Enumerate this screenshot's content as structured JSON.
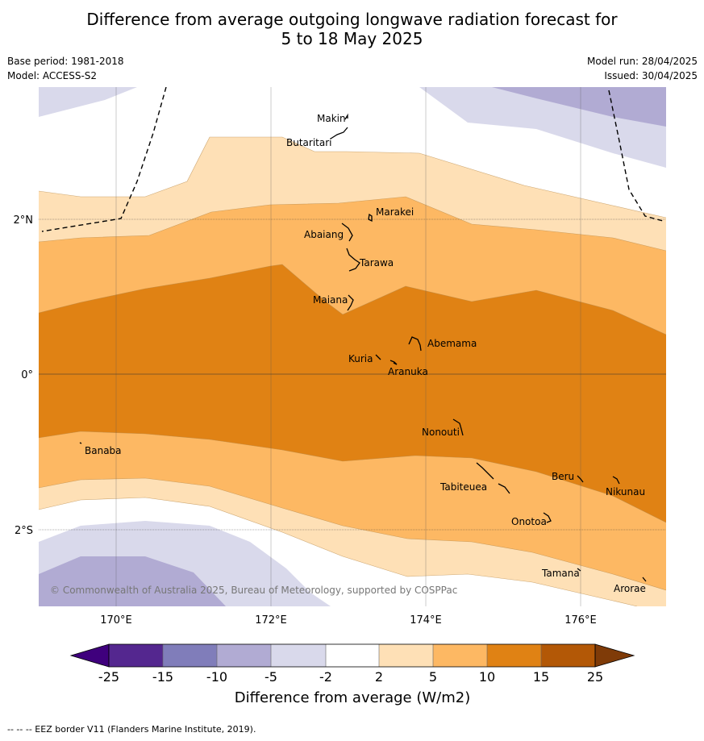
{
  "title": {
    "line1": "Difference from average outgoing longwave radiation forecast for",
    "line2": "5 to 18 May 2025"
  },
  "meta": {
    "base_period": "Base period: 1981-2018",
    "model": "Model: ACCESS-S2",
    "model_run": "Model run: 28/04/2025",
    "issued": "Issued: 30/04/2025"
  },
  "copyright": "© Commonwealth of Australia 2025, Bureau of Meteorology, supported by COSPPac",
  "axes": {
    "lon_ticks": [
      "170°E",
      "172°E",
      "174°E",
      "176°E"
    ],
    "lat_ticks": [
      "2°N",
      "0°",
      "2°S"
    ]
  },
  "places": [
    {
      "name": "Makin"
    },
    {
      "name": "Butaritari"
    },
    {
      "name": "Marakei"
    },
    {
      "name": "Abaiang"
    },
    {
      "name": "Tarawa"
    },
    {
      "name": "Maiana"
    },
    {
      "name": "Abemama"
    },
    {
      "name": "Kuria"
    },
    {
      "name": "Aranuka"
    },
    {
      "name": "Nonouti"
    },
    {
      "name": "Banaba"
    },
    {
      "name": "Beru"
    },
    {
      "name": "Tabiteuea"
    },
    {
      "name": "Nikunau"
    },
    {
      "name": "Onotoa"
    },
    {
      "name": "Tamana"
    },
    {
      "name": "Arorae"
    }
  ],
  "colorbar": {
    "title": "Difference from average (W/m2)",
    "ticks": [
      "-25",
      "-15",
      "-10",
      "-5",
      "-2",
      "2",
      "5",
      "10",
      "15",
      "25"
    ],
    "colors": {
      "below_min": "#3f007d",
      "-25_-15": "#54278f",
      "-15_-10": "#807dba",
      "-10_-5": "#b1abd3",
      "-5_-2": "#d9d9eb",
      "-2_2": "#ffffff",
      "2_5": "#fee0b6",
      "5_10": "#fdb863",
      "10_15": "#e08214",
      "15_25": "#b35806",
      "above_max": "#7f3b08"
    }
  },
  "legend_footer": "--  --  -- EEZ border V11 (Flanders Marine Institute, 2019)."
}
